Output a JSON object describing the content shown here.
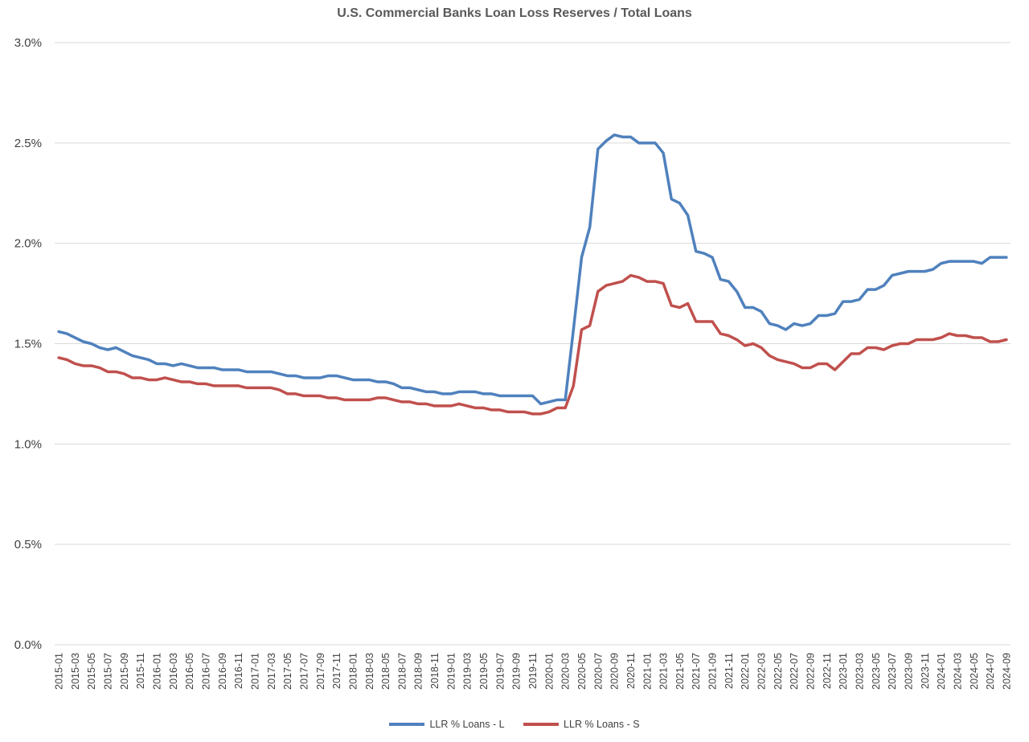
{
  "chart_data": {
    "type": "line",
    "title": "U.S. Commercial Banks Loan Loss Reserves / Total Loans",
    "xlabel": "",
    "ylabel": "",
    "ylim": [
      0,
      3.0
    ],
    "yticks": [
      "0.0%",
      "0.5%",
      "1.0%",
      "1.5%",
      "2.0%",
      "2.5%",
      "3.0%"
    ],
    "ytick_values": [
      0,
      0.5,
      1.0,
      1.5,
      2.0,
      2.5,
      3.0
    ],
    "grid": true,
    "legend_position": "bottom",
    "x": [
      "2015-01",
      "2015-02",
      "2015-03",
      "2015-04",
      "2015-05",
      "2015-06",
      "2015-07",
      "2015-08",
      "2015-09",
      "2015-10",
      "2015-11",
      "2015-12",
      "2016-01",
      "2016-02",
      "2016-03",
      "2016-04",
      "2016-05",
      "2016-06",
      "2016-07",
      "2016-08",
      "2016-09",
      "2016-10",
      "2016-11",
      "2016-12",
      "2017-01",
      "2017-02",
      "2017-03",
      "2017-04",
      "2017-05",
      "2017-06",
      "2017-07",
      "2017-08",
      "2017-09",
      "2017-10",
      "2017-11",
      "2017-12",
      "2018-01",
      "2018-02",
      "2018-03",
      "2018-04",
      "2018-05",
      "2018-06",
      "2018-07",
      "2018-08",
      "2018-09",
      "2018-10",
      "2018-11",
      "2018-12",
      "2019-01",
      "2019-02",
      "2019-03",
      "2019-04",
      "2019-05",
      "2019-06",
      "2019-07",
      "2019-08",
      "2019-09",
      "2019-10",
      "2019-11",
      "2019-12",
      "2020-01",
      "2020-02",
      "2020-03",
      "2020-04",
      "2020-05",
      "2020-06",
      "2020-07",
      "2020-08",
      "2020-09",
      "2020-10",
      "2020-11",
      "2020-12",
      "2021-01",
      "2021-02",
      "2021-03",
      "2021-04",
      "2021-05",
      "2021-06",
      "2021-07",
      "2021-08",
      "2021-09",
      "2021-10",
      "2021-11",
      "2021-12",
      "2022-01",
      "2022-02",
      "2022-03",
      "2022-04",
      "2022-05",
      "2022-06",
      "2022-07",
      "2022-08",
      "2022-09",
      "2022-10",
      "2022-11",
      "2022-12",
      "2023-01",
      "2023-02",
      "2023-03",
      "2023-04",
      "2023-05",
      "2023-06",
      "2023-07",
      "2023-08",
      "2023-09",
      "2023-10",
      "2023-11",
      "2023-12",
      "2024-01",
      "2024-02",
      "2024-03",
      "2024-04",
      "2024-05",
      "2024-06",
      "2024-07",
      "2024-08",
      "2024-09"
    ],
    "xtick_labels": [
      "2015-01",
      "2015-03",
      "2015-05",
      "2015-07",
      "2015-09",
      "2015-11",
      "2016-01",
      "2016-03",
      "2016-05",
      "2016-07",
      "2016-09",
      "2016-11",
      "2017-01",
      "2017-03",
      "2017-05",
      "2017-07",
      "2017-09",
      "2017-11",
      "2018-01",
      "2018-03",
      "2018-05",
      "2018-07",
      "2018-09",
      "2018-11",
      "2019-01",
      "2019-03",
      "2019-05",
      "2019-07",
      "2019-09",
      "2019-11",
      "2020-01",
      "2020-03",
      "2020-05",
      "2020-07",
      "2020-09",
      "2020-11",
      "2021-01",
      "2021-03",
      "2021-05",
      "2021-07",
      "2021-09",
      "2021-11",
      "2022-01",
      "2022-03",
      "2022-05",
      "2022-07",
      "2022-09",
      "2022-11",
      "2023-01",
      "2023-03",
      "2023-05",
      "2023-07",
      "2023-09",
      "2023-11",
      "2024-01",
      "2024-03",
      "2024-05",
      "2024-07",
      "2024-09"
    ],
    "series": [
      {
        "name": "LLR % Loans - L",
        "color": "#4F81BD",
        "values": [
          1.56,
          1.55,
          1.53,
          1.51,
          1.5,
          1.48,
          1.47,
          1.48,
          1.46,
          1.44,
          1.43,
          1.42,
          1.4,
          1.4,
          1.39,
          1.4,
          1.39,
          1.38,
          1.38,
          1.38,
          1.37,
          1.37,
          1.37,
          1.36,
          1.36,
          1.36,
          1.36,
          1.35,
          1.34,
          1.34,
          1.33,
          1.33,
          1.33,
          1.34,
          1.34,
          1.33,
          1.32,
          1.32,
          1.32,
          1.31,
          1.31,
          1.3,
          1.28,
          1.28,
          1.27,
          1.26,
          1.26,
          1.25,
          1.25,
          1.26,
          1.26,
          1.26,
          1.25,
          1.25,
          1.24,
          1.24,
          1.24,
          1.24,
          1.24,
          1.2,
          1.21,
          1.22,
          1.22,
          1.57,
          1.93,
          2.08,
          2.47,
          2.51,
          2.54,
          2.53,
          2.53,
          2.5,
          2.5,
          2.5,
          2.45,
          2.22,
          2.2,
          2.14,
          1.96,
          1.95,
          1.93,
          1.82,
          1.81,
          1.76,
          1.68,
          1.68,
          1.66,
          1.6,
          1.59,
          1.57,
          1.6,
          1.59,
          1.6,
          1.64,
          1.64,
          1.65,
          1.71,
          1.71,
          1.72,
          1.77,
          1.77,
          1.79,
          1.84,
          1.85,
          1.86,
          1.86,
          1.86,
          1.87,
          1.9,
          1.91,
          1.91,
          1.91,
          1.91,
          1.9,
          1.93,
          1.93,
          1.93
        ]
      },
      {
        "name": "LLR % Loans - S",
        "color": "#C0504D",
        "values": [
          1.43,
          1.42,
          1.4,
          1.39,
          1.39,
          1.38,
          1.36,
          1.36,
          1.35,
          1.33,
          1.33,
          1.32,
          1.32,
          1.33,
          1.32,
          1.31,
          1.31,
          1.3,
          1.3,
          1.29,
          1.29,
          1.29,
          1.29,
          1.28,
          1.28,
          1.28,
          1.28,
          1.27,
          1.25,
          1.25,
          1.24,
          1.24,
          1.24,
          1.23,
          1.23,
          1.22,
          1.22,
          1.22,
          1.22,
          1.23,
          1.23,
          1.22,
          1.21,
          1.21,
          1.2,
          1.2,
          1.19,
          1.19,
          1.19,
          1.2,
          1.19,
          1.18,
          1.18,
          1.17,
          1.17,
          1.16,
          1.16,
          1.16,
          1.15,
          1.15,
          1.16,
          1.18,
          1.18,
          1.29,
          1.57,
          1.59,
          1.76,
          1.79,
          1.8,
          1.81,
          1.84,
          1.83,
          1.81,
          1.81,
          1.8,
          1.69,
          1.68,
          1.7,
          1.61,
          1.61,
          1.61,
          1.55,
          1.54,
          1.52,
          1.49,
          1.5,
          1.48,
          1.44,
          1.42,
          1.41,
          1.4,
          1.38,
          1.38,
          1.4,
          1.4,
          1.37,
          1.41,
          1.45,
          1.45,
          1.48,
          1.48,
          1.47,
          1.49,
          1.5,
          1.5,
          1.52,
          1.52,
          1.52,
          1.53,
          1.55,
          1.54,
          1.54,
          1.53,
          1.53,
          1.51,
          1.51,
          1.52
        ]
      }
    ]
  }
}
